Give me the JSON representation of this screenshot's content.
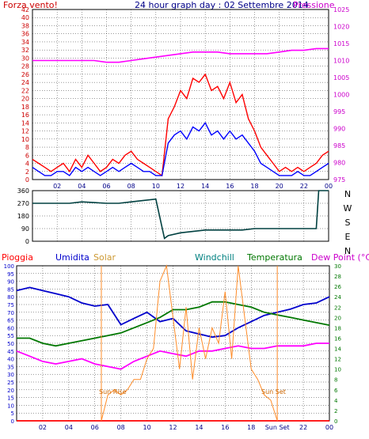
{
  "header": {
    "left": "Forza vento!",
    "center": "24 hour graph day : 02 Settembre 2014",
    "right": "Pressione"
  },
  "colors": {
    "wind_gust": "#ff0000",
    "wind_avg": "#0000ff",
    "pressure": "#ff00ff",
    "direction": "#004040",
    "humidity": "#0000cc",
    "solar": "#ff8c28",
    "windchill": "#008080",
    "temperature": "#007700",
    "dewpoint": "#ff00ff",
    "rain": "#ff0000",
    "left_axis_top": "#cc0000",
    "right_axis_top": "#cc00cc",
    "left_axis_bottom": "#0000cc",
    "right_axis_bottom": "#007700",
    "frame": "#000000"
  },
  "x_ticks": [
    "02",
    "04",
    "06",
    "08",
    "10",
    "12",
    "14",
    "16",
    "18",
    "20",
    "22",
    "00"
  ],
  "x_ticks_bottom": [
    "02",
    "04",
    "06",
    "08",
    "10",
    "12",
    "14",
    "16",
    "18",
    "Sun Set",
    "22",
    "00"
  ],
  "chart_data": [
    {
      "type": "line",
      "title": "24 hour graph day : 02 Settembre 2014",
      "ylabel_left": "Forza vento!",
      "ylabel_right": "Pressione",
      "ylim_left": [
        0,
        42
      ],
      "ylim_right": [
        975,
        1025
      ],
      "left_ticks": [
        "0",
        "2",
        "4",
        "6",
        "8",
        "10",
        "12",
        "14",
        "16",
        "18",
        "20",
        "22",
        "24",
        "26",
        "28",
        "30",
        "32",
        "34",
        "36",
        "38",
        "40",
        "42"
      ],
      "right_ticks": [
        "975",
        "980",
        "985",
        "990",
        "995",
        "1000",
        "1005",
        "1010",
        "1015",
        "1020",
        "1025"
      ],
      "series": [
        {
          "name": "wind_gust",
          "axis": "left",
          "x": [
            0,
            0.5,
            1,
            1.5,
            2,
            2.5,
            3,
            3.5,
            4,
            4.5,
            5,
            5.5,
            6,
            6.5,
            7,
            7.5,
            8,
            8.5,
            9,
            9.5,
            10,
            10.5,
            11,
            11.5,
            12,
            12.5,
            13,
            13.5,
            14,
            14.5,
            15,
            15.5,
            16,
            16.5,
            17,
            17.5,
            18,
            18.5,
            19,
            19.5,
            20,
            20.5,
            21,
            21.5,
            22,
            22.5,
            23,
            23.5,
            24
          ],
          "values": [
            5,
            4,
            3,
            2,
            3,
            4,
            2,
            5,
            3,
            6,
            4,
            2,
            3,
            5,
            4,
            6,
            7,
            5,
            4,
            3,
            2,
            1,
            15,
            18,
            22,
            20,
            25,
            24,
            26,
            22,
            23,
            20,
            24,
            19,
            21,
            15,
            12,
            8,
            6,
            4,
            2,
            3,
            2,
            3,
            2,
            3,
            4,
            6,
            7
          ]
        },
        {
          "name": "wind_avg",
          "axis": "left",
          "x": [
            0,
            0.5,
            1,
            1.5,
            2,
            2.5,
            3,
            3.5,
            4,
            4.5,
            5,
            5.5,
            6,
            6.5,
            7,
            7.5,
            8,
            8.5,
            9,
            9.5,
            10,
            10.5,
            11,
            11.5,
            12,
            12.5,
            13,
            13.5,
            14,
            14.5,
            15,
            15.5,
            16,
            16.5,
            17,
            17.5,
            18,
            18.5,
            19,
            19.5,
            20,
            20.5,
            21,
            21.5,
            22,
            22.5,
            23,
            23.5,
            24
          ],
          "values": [
            3,
            2,
            1,
            1,
            2,
            2,
            1,
            3,
            2,
            3,
            2,
            1,
            2,
            3,
            2,
            3,
            4,
            3,
            2,
            2,
            1,
            1,
            9,
            11,
            12,
            10,
            13,
            12,
            14,
            11,
            12,
            10,
            12,
            10,
            11,
            9,
            7,
            4,
            3,
            2,
            1,
            1,
            1,
            2,
            1,
            1,
            2,
            3,
            4
          ]
        },
        {
          "name": "pressure",
          "axis": "right",
          "x": [
            0,
            1,
            2,
            3,
            4,
            5,
            6,
            7,
            8,
            9,
            10,
            11,
            12,
            13,
            14,
            15,
            16,
            17,
            18,
            19,
            20,
            21,
            22,
            23,
            24
          ],
          "values": [
            1010,
            1010,
            1010,
            1010,
            1010,
            1010,
            1009.5,
            1009.5,
            1010,
            1010.5,
            1011,
            1011.5,
            1012,
            1012.5,
            1012.5,
            1012.5,
            1012,
            1012,
            1012,
            1012,
            1012.5,
            1013,
            1013,
            1013.5,
            1013.5
          ]
        }
      ]
    },
    {
      "type": "line",
      "title": "",
      "ylabel": "",
      "ylim": [
        0,
        360
      ],
      "y_ticks": [
        "0",
        "90",
        "180",
        "270",
        "360"
      ],
      "right_labels": [
        "N",
        "W",
        "S",
        "E",
        "N"
      ],
      "series": [
        {
          "name": "direction",
          "x": [
            0,
            1,
            2,
            3,
            4,
            5,
            6,
            7,
            8,
            9,
            10,
            10.7,
            11,
            12,
            13,
            14,
            15,
            16,
            17,
            18,
            19,
            20,
            21,
            22,
            23,
            23.2,
            24
          ],
          "values": [
            270,
            270,
            270,
            270,
            280,
            275,
            270,
            270,
            280,
            290,
            300,
            20,
            40,
            60,
            70,
            80,
            80,
            80,
            80,
            90,
            90,
            90,
            90,
            90,
            90,
            360,
            360
          ]
        }
      ]
    },
    {
      "type": "line",
      "title": "",
      "ylabel_left": "Umidita",
      "ylabel_right": "Temperatura",
      "ylim_left": [
        0,
        100
      ],
      "ylim_right": [
        0,
        30
      ],
      "left_ticks": [
        "0",
        "5",
        "10",
        "15",
        "20",
        "25",
        "30",
        "35",
        "40",
        "45",
        "50",
        "55",
        "60",
        "65",
        "70",
        "75",
        "80",
        "85",
        "90",
        "95",
        "100"
      ],
      "right_ticks": [
        "0",
        "2",
        "4",
        "6",
        "8",
        "10",
        "12",
        "14",
        "16",
        "18",
        "20",
        "22",
        "24",
        "26",
        "28",
        "30"
      ],
      "labels": [
        "Pioggia",
        "Umidita",
        "Solar",
        "Windchill",
        "Temperatura",
        "Dew Point (°C)"
      ],
      "annotations": [
        "Sun Rise",
        "Sun Set"
      ],
      "series": [
        {
          "name": "Umidita",
          "axis": "left",
          "x": [
            0,
            1,
            2,
            3,
            4,
            5,
            6,
            7,
            8,
            9,
            10,
            11,
            12,
            13,
            14,
            15,
            16,
            17,
            18,
            19,
            20,
            21,
            22,
            23,
            24
          ],
          "values": [
            84,
            86,
            84,
            82,
            80,
            76,
            74,
            75,
            62,
            66,
            70,
            64,
            66,
            58,
            56,
            54,
            55,
            60,
            64,
            68,
            70,
            72,
            75,
            76,
            80
          ]
        },
        {
          "name": "Temperatura",
          "axis": "right",
          "x": [
            0,
            1,
            2,
            3,
            4,
            5,
            6,
            7,
            8,
            9,
            10,
            11,
            12,
            13,
            14,
            15,
            16,
            17,
            18,
            19,
            20,
            21,
            22,
            23,
            24
          ],
          "values": [
            16,
            16,
            15,
            14.5,
            15,
            15.5,
            16,
            16.5,
            17,
            18,
            19,
            20,
            21.5,
            21.5,
            22,
            23,
            23,
            22.5,
            22,
            21,
            20.5,
            20,
            19.5,
            19,
            18.5
          ]
        },
        {
          "name": "Windchill",
          "axis": "right",
          "x": [
            0,
            24
          ],
          "values": [
            16,
            16
          ]
        },
        {
          "name": "Dew Point (°C)",
          "axis": "right",
          "x": [
            0,
            1,
            2,
            3,
            4,
            5,
            6,
            7,
            8,
            9,
            10,
            11,
            12,
            13,
            14,
            15,
            16,
            17,
            18,
            19,
            20,
            21,
            22,
            23,
            24
          ],
          "values": [
            13.5,
            12.5,
            11.5,
            11,
            11.5,
            12,
            11,
            10.5,
            10,
            11.5,
            12.5,
            13.5,
            13,
            12.5,
            13.5,
            13.5,
            14,
            14.5,
            14,
            14,
            14.5,
            14.5,
            14.5,
            15,
            15
          ]
        },
        {
          "name": "Solar",
          "axis": "right",
          "x": [
            6.5,
            7,
            7.5,
            8,
            8.5,
            9,
            9.5,
            10,
            10.5,
            11,
            11.5,
            12,
            12.5,
            13,
            13.5,
            14,
            14.5,
            15,
            15.5,
            16,
            16.5,
            17,
            17.5,
            18,
            18.5,
            19,
            19.5,
            20
          ],
          "values": [
            0,
            5,
            6,
            5,
            6,
            8,
            8,
            12,
            14,
            27,
            30,
            20,
            10,
            22,
            8,
            18,
            12,
            18,
            15,
            25,
            12,
            30,
            20,
            10,
            8,
            5,
            4,
            0
          ]
        },
        {
          "name": "Pioggia",
          "axis": "left",
          "x": [
            0,
            24
          ],
          "values": [
            0,
            0
          ]
        }
      ]
    }
  ]
}
